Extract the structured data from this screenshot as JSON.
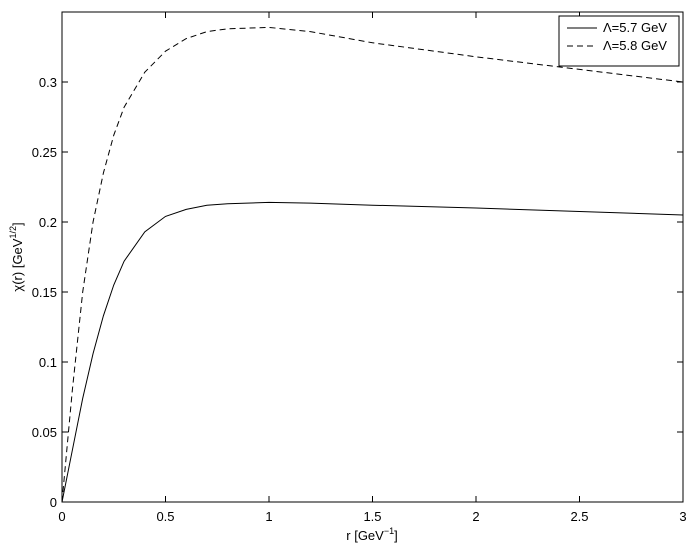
{
  "chart_data": {
    "type": "line",
    "xlabel": {
      "text": "r [GeV",
      "sup": "−1",
      "tail": "]"
    },
    "ylabel": {
      "text": "χ(r) [GeV",
      "sup": "1/2",
      "tail": "]"
    },
    "x": [
      0,
      0.05,
      0.1,
      0.15,
      0.2,
      0.25,
      0.3,
      0.4,
      0.5,
      0.6,
      0.7,
      0.8,
      1.0,
      1.2,
      1.5,
      2.0,
      2.5,
      3.0
    ],
    "series": [
      {
        "name": "Λ=5.7 GeV",
        "color": "#000000",
        "dash": "solid",
        "values": [
          0,
          0.037,
          0.074,
          0.106,
          0.133,
          0.155,
          0.172,
          0.193,
          0.204,
          0.209,
          0.212,
          0.213,
          0.214,
          0.2135,
          0.212,
          0.21,
          0.2075,
          0.205
        ]
      },
      {
        "name": "Λ=5.8 GeV",
        "color": "#000000",
        "dash": "dashed",
        "values": [
          0,
          0.08,
          0.15,
          0.2,
          0.235,
          0.262,
          0.282,
          0.307,
          0.322,
          0.331,
          0.336,
          0.338,
          0.339,
          0.336,
          0.328,
          0.318,
          0.309,
          0.3
        ]
      }
    ],
    "xlim": [
      0,
      3
    ],
    "xticks": [
      0,
      0.5,
      1,
      1.5,
      2,
      2.5,
      3
    ],
    "ylim": [
      0,
      0.35
    ],
    "yticks": [
      0,
      0.05,
      0.1,
      0.15,
      0.2,
      0.25,
      0.3
    ],
    "grid": false,
    "legend": "upper right"
  }
}
